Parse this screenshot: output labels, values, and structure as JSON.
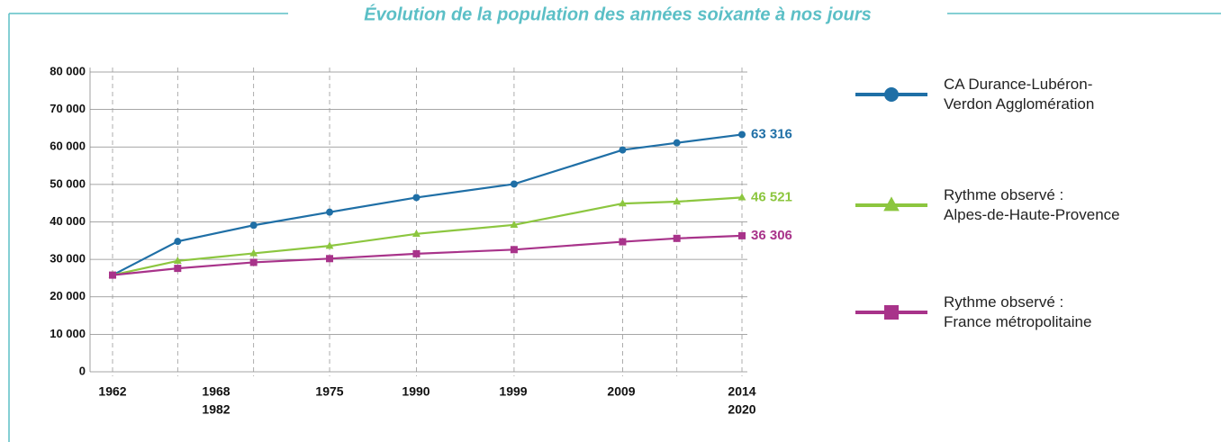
{
  "chart_data": {
    "type": "line",
    "title": "Évolution de la population des années soixante à nos jours",
    "x": [
      1962,
      1968,
      1975,
      1982,
      1990,
      1999,
      2009,
      2014,
      2020
    ],
    "xlim": [
      1962,
      2020
    ],
    "xtick_labels": [
      [
        "1962"
      ],
      [
        "1968",
        "1982"
      ],
      [
        "1975"
      ],
      [
        "1990"
      ],
      [
        "1999"
      ],
      [
        "2009"
      ],
      [
        "2014",
        "2020"
      ]
    ],
    "ylim": [
      0,
      80000
    ],
    "yticks": [
      {
        "value": 0,
        "label": "0"
      },
      {
        "value": 10000,
        "label": "10 000"
      },
      {
        "value": 20000,
        "label": "20 000"
      },
      {
        "value": 30000,
        "label": "30 000"
      },
      {
        "value": 40000,
        "label": "40 000"
      },
      {
        "value": 50000,
        "label": "50 000"
      },
      {
        "value": 60000,
        "label": "60 000"
      },
      {
        "value": 70000,
        "label": "70 000"
      },
      {
        "value": 80000,
        "label": "80 000"
      }
    ],
    "grid": true,
    "series": [
      {
        "name": "CA Durance-Lubéron-\nVerdon Agglomération",
        "color": "#1f6fa6",
        "marker": "circle",
        "values": [
          25800,
          34800,
          39100,
          42600,
          46500,
          50100,
          59200,
          61100,
          63316
        ],
        "end_label": "63 316"
      },
      {
        "name": "Rythme observé :\nAlpes-de-Haute-Provence",
        "color": "#8cc63f",
        "marker": "triangle",
        "values": [
          25800,
          29600,
          31600,
          33600,
          36800,
          39200,
          44900,
          45400,
          46521
        ],
        "end_label": "46 521"
      },
      {
        "name": "Rythme observé :\nFrance métropolitaine",
        "color": "#a8338a",
        "marker": "square",
        "values": [
          25800,
          27600,
          29200,
          30200,
          31500,
          32600,
          34700,
          35600,
          36306
        ],
        "end_label": "36 306"
      }
    ]
  }
}
